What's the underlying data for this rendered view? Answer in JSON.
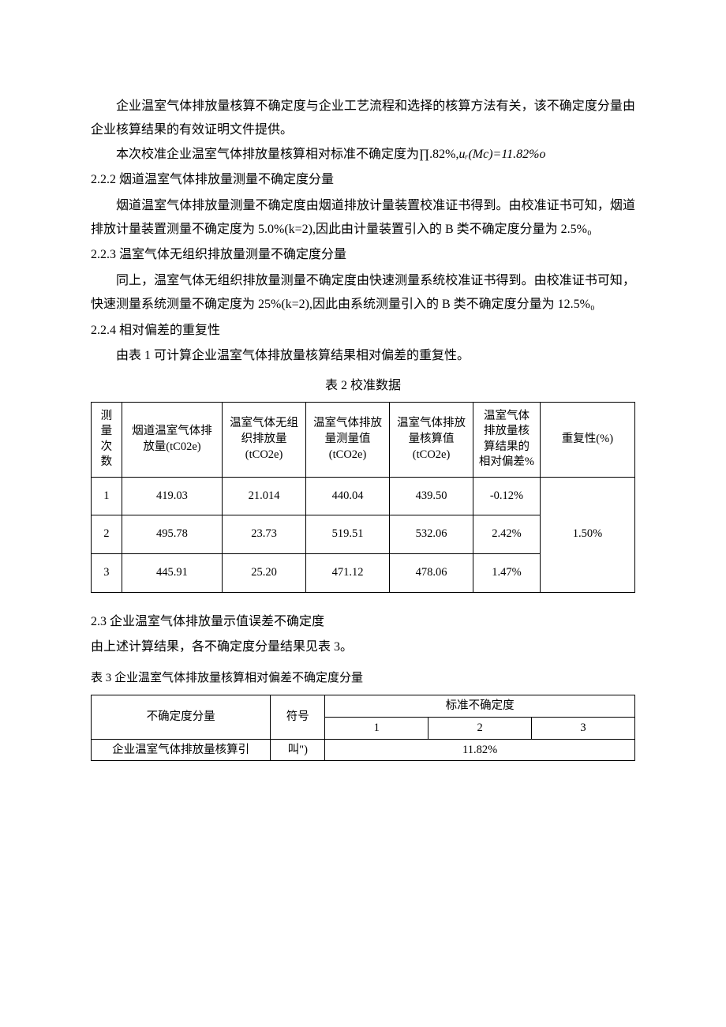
{
  "paragraphs": {
    "p1": "企业温室气体排放量核算不确定度与企业工艺流程和选择的核算方法有关，该不确定度分量由企业核算结果的有效证明文件提供。",
    "p2_pre": "本次校准企业温室气体排放量核算相对标准不确定度为∏.82%,",
    "p2_formula": "uᵣ(Mc)=11.82%o",
    "h222": "2.2.2  烟道温室气体排放量测量不确定度分量",
    "p3": "烟道温室气体排放量测量不确定度由烟道排放计量装置校准证书得到。由校准证书可知，烟道排放计量装置测量不确定度为 5.0%(k=2),因此由计量装置引入的 B 类不确定度分量为 2.5%₀",
    "h223": "2.2.3  温室气体无组织排放量测量不确定度分量",
    "p4": "同上，温室气体无组织排放量测量不确定度由快速测量系统校准证书得到。由校准证书可知，快速测量系统测量不确定度为 25%(k=2),因此由系统测量引入的 B 类不确定度分量为 12.5%₀",
    "h224": "2.2.4  相对偏差的重复性",
    "p5": "由表 1 可计算企业温室气体排放量核算结果相对偏差的重复性。",
    "table2_caption": "表 2 校准数据",
    "h23": "2.3 企业温室气体排放量示值误差不确定度",
    "p6": "由上述计算结果，各不确定度分量结果见表 3。",
    "table3_caption": "表 3 企业温室气体排放量核算相对偏差不确定度分量"
  },
  "table2": {
    "headers": [
      "测量次数",
      "烟道温室气体排放量(tC02e)",
      "温室气体无组织排放量(tCO2e)",
      "温室气体排放量测量值(tCO2e)",
      "温室气体排放量核算值(tCO2e)",
      "温室气体排放量核算结果的相对偏差%",
      "重复性(%)"
    ],
    "rows": [
      [
        "1",
        "419.03",
        "21.014",
        "440.04",
        "439.50",
        "-0.12%"
      ],
      [
        "2",
        "495.78",
        "23.73",
        "519.51",
        "532.06",
        "2.42%"
      ],
      [
        "3",
        "445.91",
        "25.20",
        "471.12",
        "478.06",
        "1.47%"
      ]
    ],
    "repeatability": "1.50%"
  },
  "table3": {
    "header_component": "不确定度分量",
    "header_symbol": "符号",
    "header_std": "标准不确定度",
    "sub_headers": [
      "1",
      "2",
      "3"
    ],
    "rows": [
      {
        "component": "企业温室气体排放量核算引",
        "symbol": "叫\")",
        "value": "11.82%"
      }
    ]
  }
}
